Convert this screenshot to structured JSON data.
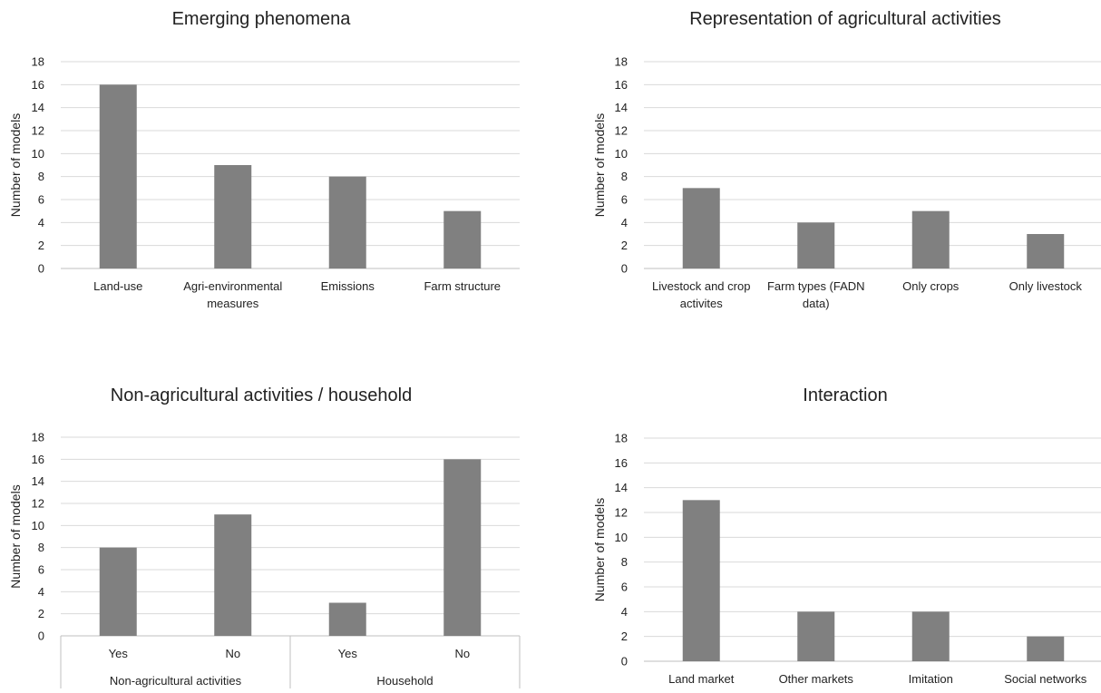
{
  "chart_data": [
    {
      "type": "bar",
      "title": "Emerging phenomena",
      "ylabel": "Number of models",
      "ylim": [
        0,
        18
      ],
      "ytick_step": 2,
      "grid": true,
      "bar_color": "#808080",
      "categories": [
        [
          "Land-use"
        ],
        [
          "Agri-environmental",
          "measures"
        ],
        [
          "Emissions"
        ],
        [
          "Farm structure"
        ]
      ],
      "values": [
        16,
        9,
        8,
        5
      ]
    },
    {
      "type": "bar",
      "title": "Representation of agricultural activities",
      "ylabel": "Number of models",
      "ylim": [
        0,
        18
      ],
      "ytick_step": 2,
      "grid": true,
      "bar_color": "#808080",
      "categories": [
        [
          "Livestock and crop",
          "activites"
        ],
        [
          "Farm types (FADN",
          "data)"
        ],
        [
          "Only crops"
        ],
        [
          "Only livestock"
        ]
      ],
      "values": [
        7,
        4,
        5,
        3
      ]
    },
    {
      "type": "bar",
      "title": "Non-agricultural activities / household",
      "ylabel": "Number of models",
      "ylim": [
        0,
        18
      ],
      "ytick_step": 2,
      "grid": true,
      "bar_color": "#808080",
      "categories": [
        [
          "Yes"
        ],
        [
          "No"
        ],
        [
          "Yes"
        ],
        [
          "No"
        ]
      ],
      "groups": [
        {
          "label": "Non-agricultural activities",
          "span": 2
        },
        {
          "label": "Household",
          "span": 2
        }
      ],
      "values": [
        8,
        11,
        3,
        16
      ]
    },
    {
      "type": "bar",
      "title": "Interaction",
      "ylabel": "Number of models",
      "ylim": [
        0,
        18
      ],
      "ytick_step": 2,
      "grid": true,
      "bar_color": "#808080",
      "categories": [
        [
          "Land market"
        ],
        [
          "Other markets"
        ],
        [
          "Imitation"
        ],
        [
          "Social networks"
        ]
      ],
      "values": [
        13,
        4,
        4,
        2
      ]
    }
  ]
}
